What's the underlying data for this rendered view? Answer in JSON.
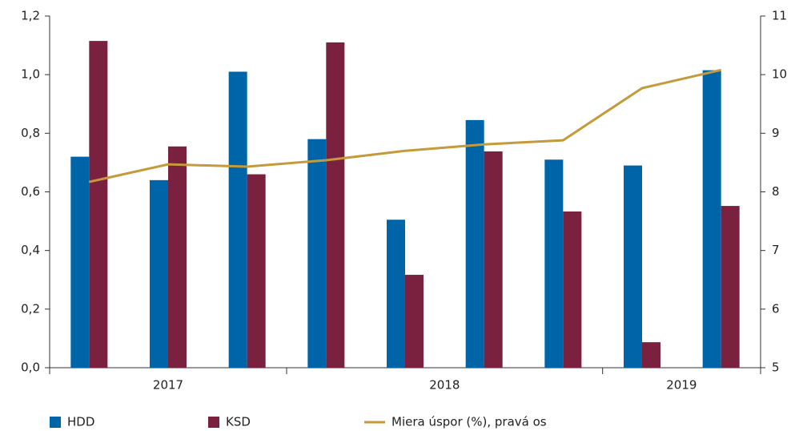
{
  "chart_data": {
    "type": "bar+line",
    "categories": [
      null,
      null,
      null,
      null,
      null,
      null,
      null,
      null,
      null
    ],
    "x_groups": [
      {
        "label": "2017",
        "start": 0,
        "end": 2
      },
      {
        "label": "2018",
        "start": 3,
        "end": 6
      },
      {
        "label": "2019",
        "start": 7,
        "end": 8
      }
    ],
    "series": [
      {
        "name": "HDD",
        "type": "bar",
        "color": "#0064a8",
        "values": [
          0.72,
          0.64,
          1.01,
          0.78,
          0.505,
          0.845,
          0.71,
          0.69,
          1.015
        ]
      },
      {
        "name": "KSD",
        "type": "bar",
        "color": "#7a2140",
        "values": [
          1.115,
          0.755,
          0.66,
          1.11,
          0.317,
          0.738,
          0.533,
          0.087,
          0.552
        ]
      },
      {
        "name": "Miera úspor (%), pravá os",
        "type": "line",
        "axis": "y2",
        "color": "#c49a3a",
        "values": [
          8.17,
          8.47,
          8.43,
          8.54,
          8.7,
          8.81,
          8.88,
          9.77,
          10.08
        ]
      }
    ],
    "ylim": [
      0,
      1.2
    ],
    "yticks": [
      {
        "value": 0,
        "label": "0,0"
      },
      {
        "value": 0.2,
        "label": "0,2"
      },
      {
        "value": 0.4,
        "label": "0,4"
      },
      {
        "value": 0.6,
        "label": "0,6"
      },
      {
        "value": 0.8,
        "label": "0,8"
      },
      {
        "value": 1.0,
        "label": "1,0"
      },
      {
        "value": 1.2,
        "label": "1,2"
      }
    ],
    "y2lim": [
      5,
      11
    ],
    "y2ticks": [
      5,
      6,
      7,
      8,
      9,
      10,
      11
    ],
    "legend": "bottom"
  }
}
